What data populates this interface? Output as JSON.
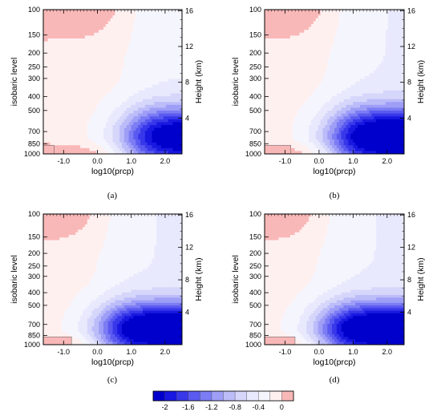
{
  "chart_data": {
    "type": "contour",
    "panels": [
      {
        "caption": "(a)",
        "blue_reach": 0.0,
        "blue_core": -2.0,
        "low_pink": 0.18
      },
      {
        "caption": "(b)",
        "blue_reach": 0.45,
        "blue_core": -2.2,
        "low_pink": 0.55
      },
      {
        "caption": "(c)",
        "blue_reach": 0.7,
        "blue_core": -2.2,
        "low_pink": 0.6
      },
      {
        "caption": "(d)",
        "blue_reach": 0.75,
        "blue_core": -2.2,
        "low_pink": 0.65
      }
    ],
    "xlabel": "log10(prcp)",
    "ylabel_left": "isobaric level",
    "ylabel_right": "Height (km)",
    "x_ticks": [
      "-1.0",
      "0.0",
      "1.0",
      "2.0"
    ],
    "x_tick_values": [
      -1.0,
      0.0,
      1.0,
      2.0
    ],
    "xlim": [
      -1.6,
      2.5
    ],
    "y_ticks": [
      "100",
      "150",
      "200",
      "250",
      "300",
      "400",
      "500",
      "700",
      "850",
      "1000"
    ],
    "y_tick_values": [
      100,
      150,
      200,
      250,
      300,
      400,
      500,
      700,
      850,
      1000
    ],
    "ylim": [
      1000,
      100
    ],
    "height_ticks": [
      "16",
      "12",
      "8",
      "4"
    ],
    "height_tick_values": [
      16,
      12,
      8,
      4
    ],
    "colorbar": {
      "labels": [
        "-2",
        "-1.6",
        "-1.2",
        "-0.8",
        "-0.4",
        "0"
      ],
      "levels": [
        -2.0,
        -1.8,
        -1.6,
        -1.4,
        -1.2,
        -1.0,
        -0.8,
        -0.6,
        -0.4,
        -0.2,
        0.0,
        0.2
      ],
      "colors": [
        "#0000cc",
        "#1818e0",
        "#3838ea",
        "#5a5af0",
        "#7c7cf4",
        "#9e9ef7",
        "#bcbcf9",
        "#d6d6fb",
        "#e9e9fd",
        "#f5f5fe",
        "#fff0f0",
        "#f9b8b8"
      ]
    }
  }
}
